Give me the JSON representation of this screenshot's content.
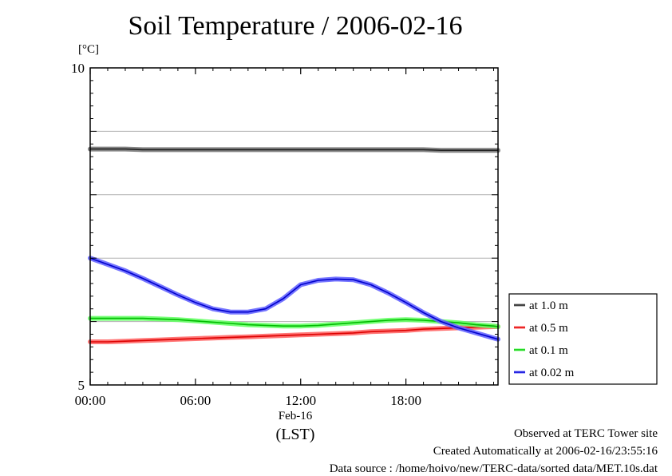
{
  "chart_data": {
    "type": "line",
    "title": "Soil Temperature / 2006-02-16",
    "ylabel": "[°C]",
    "xlabel": "(LST)",
    "x_date_label": "Feb-16",
    "x_ticks": [
      "00:00",
      "06:00",
      "12:00",
      "18:00"
    ],
    "x_tick_hours": [
      0,
      6,
      12,
      18
    ],
    "xlim_hours": [
      0,
      23.25
    ],
    "ylim": [
      5,
      10
    ],
    "y_tick_labels": [
      "5",
      "10"
    ],
    "y_gridlines": [
      6,
      7,
      8,
      9
    ],
    "grid": "horizontal",
    "legend_position": "right",
    "x_hours": [
      0,
      1,
      2,
      3,
      4,
      5,
      6,
      7,
      8,
      9,
      10,
      11,
      12,
      13,
      14,
      15,
      16,
      17,
      18,
      19,
      20,
      21,
      22,
      23,
      23.25
    ],
    "series": [
      {
        "name": "at 1.0 m",
        "color": "#222222",
        "shadow": "#777777",
        "values": [
          8.72,
          8.72,
          8.72,
          8.71,
          8.71,
          8.71,
          8.71,
          8.71,
          8.71,
          8.71,
          8.71,
          8.71,
          8.71,
          8.71,
          8.71,
          8.71,
          8.71,
          8.71,
          8.71,
          8.71,
          8.7,
          8.7,
          8.7,
          8.7,
          8.7
        ]
      },
      {
        "name": "at 0.5 m",
        "color": "#dd0000",
        "shadow": "#ff6666",
        "values": [
          5.68,
          5.68,
          5.69,
          5.7,
          5.71,
          5.72,
          5.73,
          5.74,
          5.75,
          5.76,
          5.77,
          5.78,
          5.79,
          5.8,
          5.81,
          5.82,
          5.84,
          5.85,
          5.86,
          5.88,
          5.89,
          5.9,
          5.91,
          5.92,
          5.92
        ]
      },
      {
        "name": "at 0.1 m",
        "color": "#00bb00",
        "shadow": "#66ff66",
        "values": [
          6.05,
          6.05,
          6.05,
          6.05,
          6.04,
          6.03,
          6.01,
          5.99,
          5.97,
          5.95,
          5.94,
          5.93,
          5.93,
          5.94,
          5.96,
          5.98,
          6.0,
          6.02,
          6.03,
          6.02,
          6.0,
          5.98,
          5.95,
          5.93,
          5.92
        ]
      },
      {
        "name": "at 0.02 m",
        "color": "#0000cc",
        "shadow": "#6666ff",
        "values": [
          7.0,
          6.9,
          6.8,
          6.68,
          6.55,
          6.42,
          6.3,
          6.2,
          6.15,
          6.15,
          6.2,
          6.36,
          6.58,
          6.65,
          6.67,
          6.66,
          6.58,
          6.45,
          6.3,
          6.14,
          6.0,
          5.9,
          5.82,
          5.74,
          5.72
        ]
      }
    ]
  },
  "footer": {
    "line1": "Observed at TERC Tower site",
    "line2": "Created Automatically at 2006-02-16/23:55:16",
    "line3": "Data source : /home/hoivo/new/TERC-data/sorted  data/MET.10s.dat"
  }
}
